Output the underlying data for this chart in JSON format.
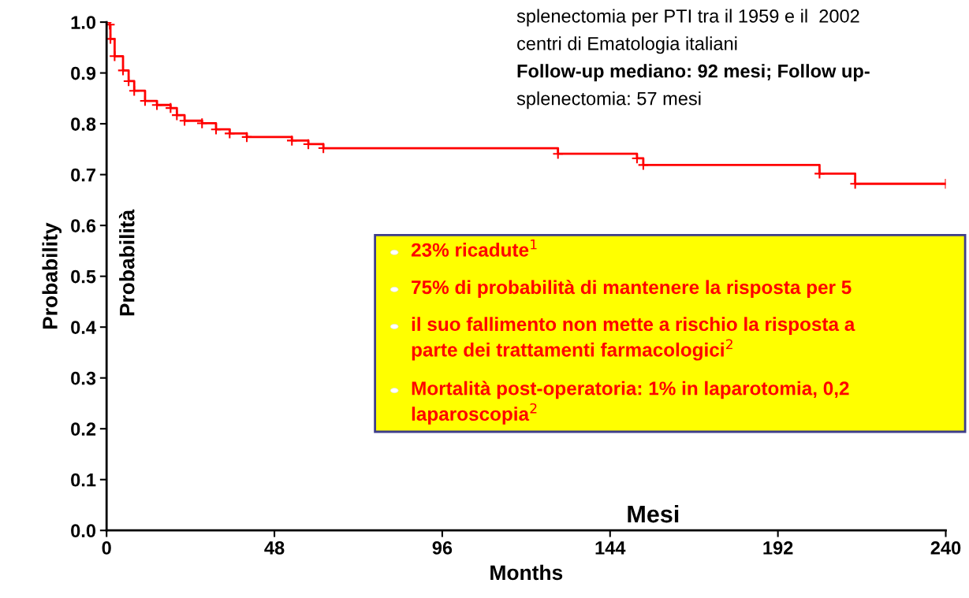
{
  "chart_data": {
    "type": "step",
    "xlabel": "Months",
    "ylabel": "Probability",
    "x": [
      0,
      0.9,
      1.1,
      2.3,
      4.7,
      6.3,
      7.9,
      11.0,
      14.4,
      18.3,
      20.1,
      22.3,
      27.3,
      31.3,
      35.2,
      40.1,
      53.0,
      57.7,
      62.0,
      129.1,
      151.7,
      153.5,
      203.9,
      214.1,
      240
    ],
    "series": [
      {
        "color": "#ff0000",
        "values": [
          1.0,
          0.995,
          0.967,
          0.933,
          0.905,
          0.884,
          0.865,
          0.845,
          0.837,
          0.831,
          0.817,
          0.806,
          0.801,
          0.789,
          0.781,
          0.774,
          0.767,
          0.76,
          0.752,
          0.741,
          0.732,
          0.719,
          0.702,
          0.682,
          0.682
        ]
      }
    ],
    "xlim": [
      0,
      240
    ],
    "xticks": [
      0,
      48,
      96,
      144,
      192,
      240
    ],
    "ylim": [
      0,
      1.0
    ],
    "yticks": [
      {
        "value": 0,
        "label": "0.0"
      },
      0.1,
      0.2,
      0.3,
      0.4,
      0.5,
      0.6,
      0.7,
      0.8,
      0.9,
      {
        "value": 1.0,
        "label": "1.0"
      }
    ],
    "marker": "cross",
    "line_style": "solid",
    "grid": false,
    "legend": false,
    "annotations": [
      "Probabilità",
      "Mesi",
      "splenectomia per PTI tra il 1959 e il  2002",
      "centri di Ematologia italiani",
      "Follow-up mediano: 92 mesi; Follow up-",
      "splenectomia: 57 mesi",
      "23% ricadute$^{1}$",
      "75% di probabilità di mantenere la risposta per 5",
      "il suo fallimento non mette a rischio la risposta a\nparte dei trattamenti farmacologici$^{2}$",
      "Mortalità post-operatoria: 1% in laparotomia, 0,2\nlaparoscopia$^{2}$"
    ]
  }
}
